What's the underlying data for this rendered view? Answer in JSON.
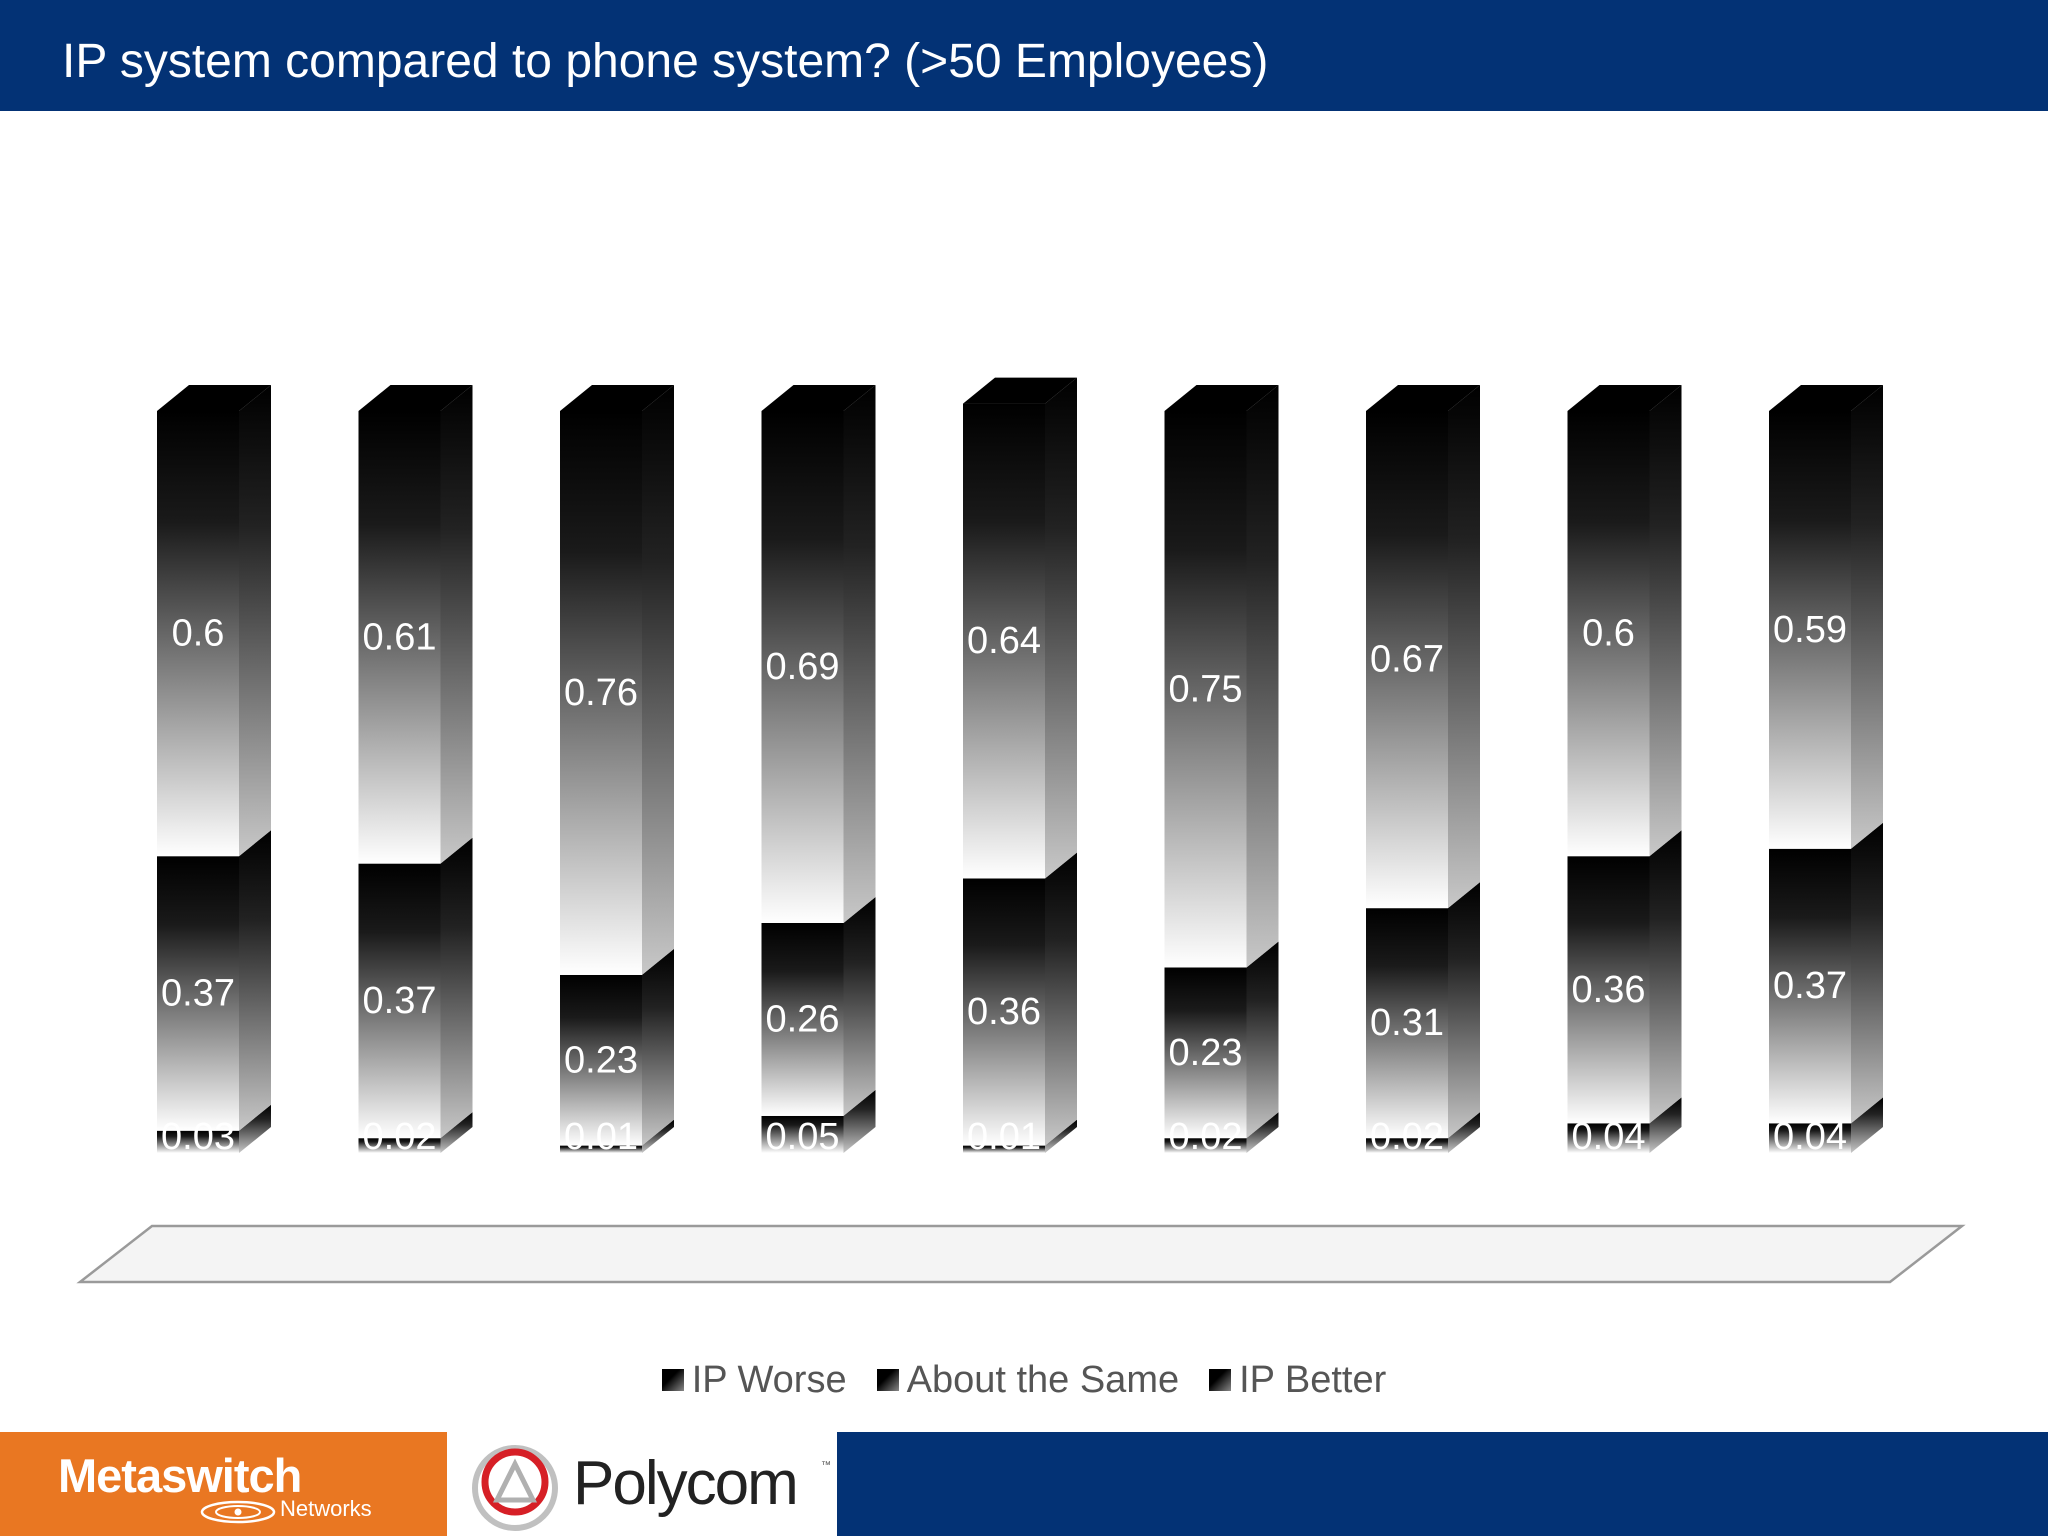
{
  "header": {
    "title": "IP system compared to phone system? (>50 Employees)"
  },
  "chart_data": {
    "type": "bar",
    "stacked": true,
    "percent_stacked": true,
    "three_d": true,
    "categories": [
      "",
      "",
      "",
      "",
      "",
      "",
      "",
      "",
      ""
    ],
    "series": [
      {
        "name": "IP Worse",
        "values": [
          0.03,
          0.02,
          0.01,
          0.05,
          0.01,
          0.02,
          0.02,
          0.04,
          0.04
        ]
      },
      {
        "name": "About the Same",
        "values": [
          0.37,
          0.37,
          0.23,
          0.26,
          0.36,
          0.23,
          0.31,
          0.36,
          0.37
        ]
      },
      {
        "name": "IP Better",
        "values": [
          0.6,
          0.61,
          0.76,
          0.69,
          0.64,
          0.75,
          0.67,
          0.6,
          0.59
        ]
      }
    ],
    "data_labels": true,
    "legend_position": "bottom",
    "grid": false,
    "colors": {
      "dark": "#000000",
      "light": "#ffffff",
      "label": "#ffffff"
    }
  },
  "legend": {
    "items": [
      {
        "label": "IP Worse"
      },
      {
        "label": "About the Same"
      },
      {
        "label": "IP Better"
      }
    ]
  },
  "footer": {
    "brand_left": {
      "name": "Metaswitch",
      "sub": "Networks"
    },
    "brand_right": {
      "name": "Polycom"
    },
    "colors": {
      "orange": "#e97722",
      "navy": "#033275"
    }
  }
}
